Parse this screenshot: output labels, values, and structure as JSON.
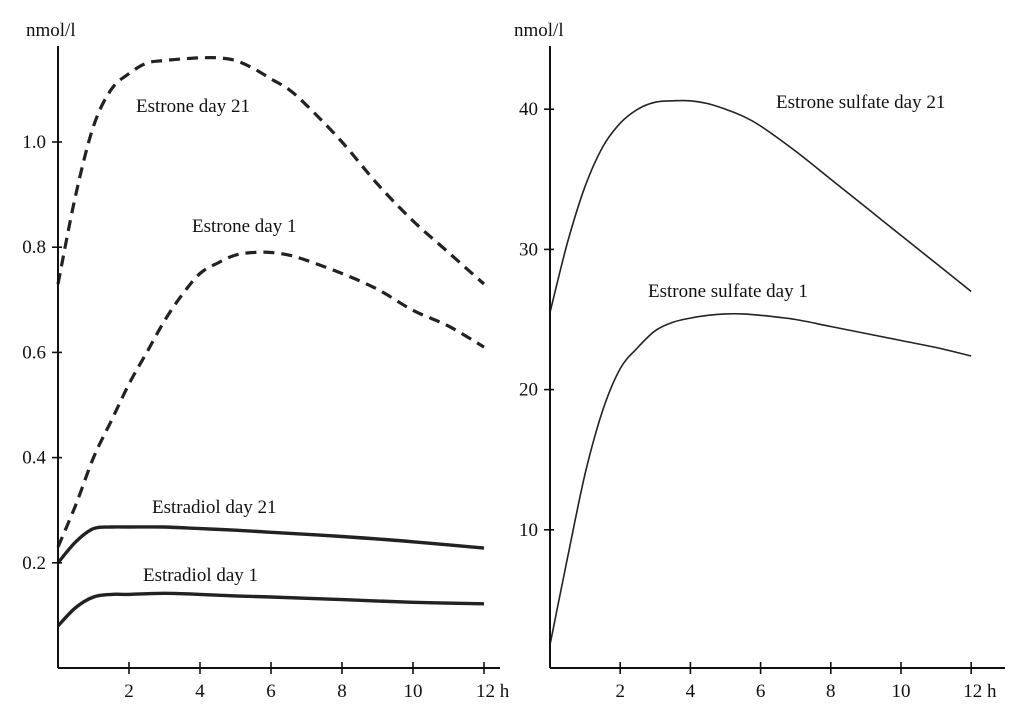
{
  "chart_data": [
    {
      "type": "line",
      "ylabel": "nmol/l",
      "xlim": [
        0,
        12.5
      ],
      "ylim": [
        0,
        1.22
      ],
      "x_ticks": [
        2,
        4,
        6,
        8,
        10,
        12
      ],
      "x_tick_labels": [
        "2",
        "4",
        "6",
        "8",
        "10",
        "12 h"
      ],
      "y_ticks": [
        0.2,
        0.4,
        0.6,
        0.8,
        1.0
      ],
      "y_tick_labels": [
        "0.2",
        "0.4",
        "0.6",
        "0.8",
        "1.0"
      ],
      "grid": false,
      "series": [
        {
          "name": "Estrone day 21",
          "style": "dashed",
          "color": "#222222",
          "x": [
            0,
            0.5,
            1,
            1.5,
            2,
            2.5,
            3,
            3.5,
            4,
            4.5,
            5,
            5.5,
            6,
            6.5,
            7,
            8,
            9,
            10,
            11,
            12
          ],
          "y": [
            0.73,
            0.9,
            1.03,
            1.1,
            1.13,
            1.15,
            1.155,
            1.158,
            1.16,
            1.16,
            1.155,
            1.14,
            1.12,
            1.1,
            1.07,
            1.0,
            0.92,
            0.85,
            0.79,
            0.73
          ]
        },
        {
          "name": "Estrone day 1",
          "style": "dashed",
          "color": "#222222",
          "x": [
            0,
            0.5,
            1,
            1.5,
            2,
            2.5,
            3,
            3.5,
            4,
            4.5,
            5,
            5.5,
            6,
            6.5,
            7,
            8,
            9,
            10,
            11,
            12
          ],
          "y": [
            0.23,
            0.31,
            0.4,
            0.47,
            0.54,
            0.6,
            0.66,
            0.71,
            0.75,
            0.77,
            0.785,
            0.79,
            0.79,
            0.785,
            0.775,
            0.75,
            0.72,
            0.68,
            0.65,
            0.61
          ]
        },
        {
          "name": "Estradiol day 21",
          "style": "solid-bold",
          "color": "#222222",
          "x": [
            0,
            0.5,
            1,
            1.5,
            2,
            3,
            4,
            5,
            6,
            8,
            10,
            12
          ],
          "y": [
            0.2,
            0.24,
            0.265,
            0.268,
            0.268,
            0.268,
            0.265,
            0.262,
            0.258,
            0.25,
            0.24,
            0.228
          ]
        },
        {
          "name": "Estradiol day 1",
          "style": "solid-bold",
          "color": "#222222",
          "x": [
            0,
            0.5,
            1,
            1.5,
            2,
            3,
            4,
            5,
            6,
            8,
            10,
            12
          ],
          "y": [
            0.08,
            0.115,
            0.135,
            0.14,
            0.14,
            0.142,
            0.14,
            0.137,
            0.135,
            0.13,
            0.125,
            0.122
          ]
        }
      ]
    },
    {
      "type": "line",
      "ylabel": "nmol/l",
      "xlim": [
        0,
        12.6
      ],
      "ylim": [
        0,
        43.8
      ],
      "x_ticks": [
        2,
        4,
        6,
        8,
        10,
        12
      ],
      "x_tick_labels": [
        "2",
        "4",
        "6",
        "8",
        "10",
        "12 h"
      ],
      "y_ticks": [
        10,
        20,
        30,
        40
      ],
      "y_tick_labels": [
        "10",
        "20",
        "30",
        "40"
      ],
      "grid": false,
      "series": [
        {
          "name": "Estrone sulfate day 21",
          "style": "solid-thin",
          "color": "#222222",
          "x": [
            0,
            0.5,
            1,
            1.5,
            2,
            2.5,
            3,
            3.5,
            4,
            4.5,
            5,
            5.5,
            6,
            7,
            8,
            9,
            10,
            11,
            12
          ],
          "y": [
            25.5,
            30.5,
            34.5,
            37.3,
            39,
            40,
            40.5,
            40.6,
            40.6,
            40.4,
            40,
            39.5,
            38.8,
            37,
            35,
            33,
            31,
            29,
            27
          ]
        },
        {
          "name": "Estrone sulfate day 1",
          "style": "solid-thin",
          "color": "#222222",
          "x": [
            0,
            0.5,
            1,
            1.5,
            2,
            2.5,
            3,
            3.5,
            4,
            4.5,
            5,
            5.5,
            6,
            7,
            8,
            9,
            10,
            11,
            12
          ],
          "y": [
            1.8,
            8,
            14,
            18.5,
            21.5,
            23,
            24.2,
            24.8,
            25.1,
            25.3,
            25.4,
            25.4,
            25.3,
            25,
            24.5,
            24,
            23.5,
            23,
            22.4
          ]
        }
      ]
    }
  ]
}
